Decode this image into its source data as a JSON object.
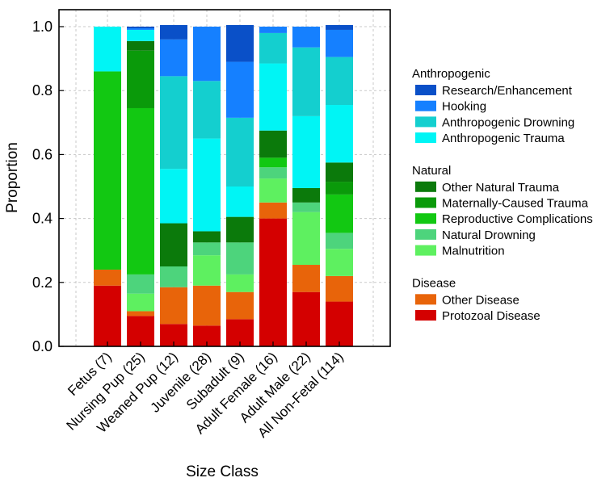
{
  "chart_data": {
    "type": "bar",
    "stacked": true,
    "xlabel": "Size Class",
    "ylabel": "Proportion",
    "ylim": [
      0,
      1.0
    ],
    "yticks": [
      "0.0",
      "0.2",
      "0.4",
      "0.6",
      "0.8",
      "1.0"
    ],
    "grid": true,
    "legend_position": "right",
    "categories": [
      "Fetus (7)",
      "Nursing Pup (25)",
      "Weaned Pup (12)",
      "Juvenile (28)",
      "Subadult (9)",
      "Adult Female (16)",
      "Adult Male (22)",
      "All Non-Fetal (114)"
    ],
    "groups": [
      {
        "title": "Anthropogenic",
        "series": [
          "Research/Enhancement",
          "Hooking",
          "Anthropogenic Drowning",
          "Anthropogenic Trauma"
        ]
      },
      {
        "title": "Natural",
        "series": [
          "Other Natural Trauma",
          "Maternally-Caused Trauma",
          "Reproductive Complications",
          "Natural Drowning",
          "Malnutrition"
        ]
      },
      {
        "title": "Disease",
        "series": [
          "Other Disease",
          "Protozoal Disease"
        ]
      }
    ],
    "series": [
      {
        "name": "Protozoal Disease",
        "color": "#d40000",
        "values": [
          0.19,
          0.095,
          0.07,
          0.065,
          0.085,
          0.4,
          0.17,
          0.14
        ]
      },
      {
        "name": "Other Disease",
        "color": "#e8640a",
        "values": [
          0.05,
          0.015,
          0.115,
          0.125,
          0.085,
          0.05,
          0.085,
          0.08
        ]
      },
      {
        "name": "Malnutrition",
        "color": "#5ef060",
        "values": [
          0.0,
          0.055,
          0.0,
          0.095,
          0.055,
          0.075,
          0.165,
          0.085
        ]
      },
      {
        "name": "Natural Drowning",
        "color": "#4dd47c",
        "values": [
          0.0,
          0.06,
          0.065,
          0.04,
          0.1,
          0.035,
          0.03,
          0.05
        ]
      },
      {
        "name": "Reproductive Complications",
        "color": "#12c812",
        "values": [
          0.62,
          0.52,
          0.0,
          0.0,
          0.0,
          0.03,
          0.0,
          0.12
        ]
      },
      {
        "name": "Maternally-Caused Trauma",
        "color": "#0a9a0a",
        "values": [
          0.0,
          0.18,
          0.0,
          0.0,
          0.0,
          0.0,
          0.0,
          0.04
        ]
      },
      {
        "name": "Other Natural Trauma",
        "color": "#0b7a0b",
        "values": [
          0.0,
          0.03,
          0.135,
          0.035,
          0.08,
          0.085,
          0.045,
          0.06
        ]
      },
      {
        "name": "Anthropogenic Trauma",
        "color": "#00f5f5",
        "values": [
          0.14,
          0.035,
          0.17,
          0.29,
          0.095,
          0.21,
          0.225,
          0.18
        ]
      },
      {
        "name": "Anthropogenic Drowning",
        "color": "#14cfcf",
        "values": [
          0.0,
          0.0,
          0.29,
          0.18,
          0.215,
          0.095,
          0.215,
          0.15
        ]
      },
      {
        "name": "Hooking",
        "color": "#1580ff",
        "values": [
          0.0,
          0.005,
          0.115,
          0.17,
          0.175,
          0.02,
          0.065,
          0.085
        ]
      },
      {
        "name": "Research/Enhancement",
        "color": "#0a50c8",
        "values": [
          0.0,
          0.005,
          0.045,
          0.0,
          0.115,
          0.0,
          0.0,
          0.015
        ]
      }
    ]
  }
}
